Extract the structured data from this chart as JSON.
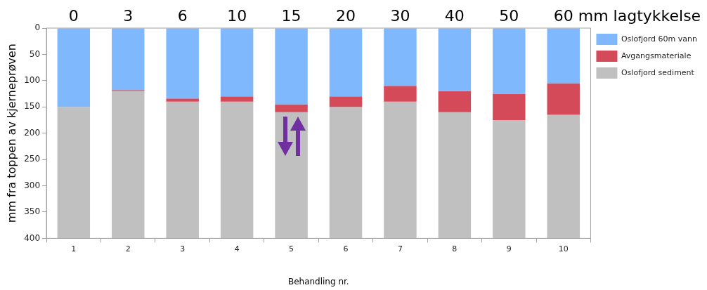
{
  "chart_data": {
    "type": "bar",
    "stacked": true,
    "xlabel": "Behandling nr.",
    "ylabel": "mm fra toppen av kjerneprøven",
    "categories": [
      "1",
      "2",
      "3",
      "4",
      "5",
      "6",
      "7",
      "8",
      "9",
      "10"
    ],
    "series": [
      {
        "name": "Oslofjord 60m vann",
        "color": "#7fb8fd",
        "values": [
          150,
          118,
          134,
          130,
          145,
          130,
          110,
          120,
          125,
          105
        ]
      },
      {
        "name": "Avgangsmateriale",
        "color": "#d44a58",
        "values": [
          0,
          2,
          6,
          10,
          15,
          20,
          30,
          40,
          50,
          60
        ]
      },
      {
        "name": "Oslofjord sediment",
        "color": "#c0c0c0",
        "values": [
          250,
          280,
          260,
          260,
          240,
          250,
          260,
          240,
          225,
          235
        ]
      }
    ],
    "ylim": [
      400,
      0
    ],
    "yticks": [
      0,
      50,
      100,
      150,
      200,
      250,
      300,
      350,
      400
    ],
    "grid": false,
    "legend": "top right",
    "annotations": [
      "0",
      "3",
      "6",
      "10",
      "15",
      "20",
      "30",
      "40",
      "50",
      "60 mm lagtykkelse"
    ]
  }
}
